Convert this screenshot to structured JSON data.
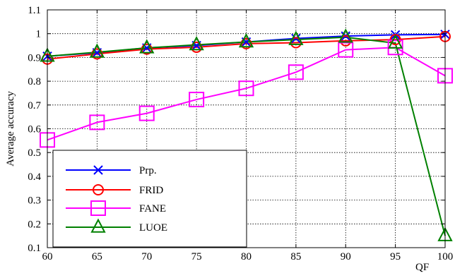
{
  "chart_data": {
    "type": "line",
    "title": "",
    "xlabel": "QF",
    "ylabel": "Average accuracy",
    "x": [
      60,
      65,
      70,
      75,
      80,
      85,
      90,
      95,
      100
    ],
    "xlim": [
      60,
      100
    ],
    "ylim": [
      0.1,
      1.1
    ],
    "xticks": [
      60,
      65,
      70,
      75,
      80,
      85,
      90,
      95,
      100
    ],
    "yticks": [
      0.1,
      0.2,
      0.3,
      0.4,
      0.5,
      0.6,
      0.7,
      0.8,
      0.9,
      1,
      1.1
    ],
    "ytick_labels": [
      "0.1",
      "0.2",
      "0.3",
      "0.4",
      "0.5",
      "0.6",
      "0.7",
      "0.8",
      "0.9",
      "1",
      "1.1"
    ],
    "grid": true,
    "grid_style": "dotted",
    "legend_position": "bottom-left",
    "series": [
      {
        "name": "Prp.",
        "color": "#0000ff",
        "marker": "x",
        "values": [
          0.905,
          0.92,
          0.94,
          0.95,
          0.965,
          0.98,
          0.99,
          0.995,
          0.997
        ]
      },
      {
        "name": "FRID",
        "color": "#ff0000",
        "marker": "circle",
        "values": [
          0.893,
          0.915,
          0.935,
          0.943,
          0.958,
          0.962,
          0.97,
          0.975,
          0.988
        ]
      },
      {
        "name": "FANE",
        "color": "#ff00ff",
        "marker": "square",
        "values": [
          0.553,
          0.627,
          0.665,
          0.723,
          0.77,
          0.838,
          0.932,
          0.942,
          0.823
        ]
      },
      {
        "name": "LUOE",
        "color": "#008000",
        "marker": "triangle",
        "values": [
          0.905,
          0.922,
          0.94,
          0.953,
          0.965,
          0.975,
          0.985,
          0.96,
          0.15
        ]
      }
    ]
  }
}
